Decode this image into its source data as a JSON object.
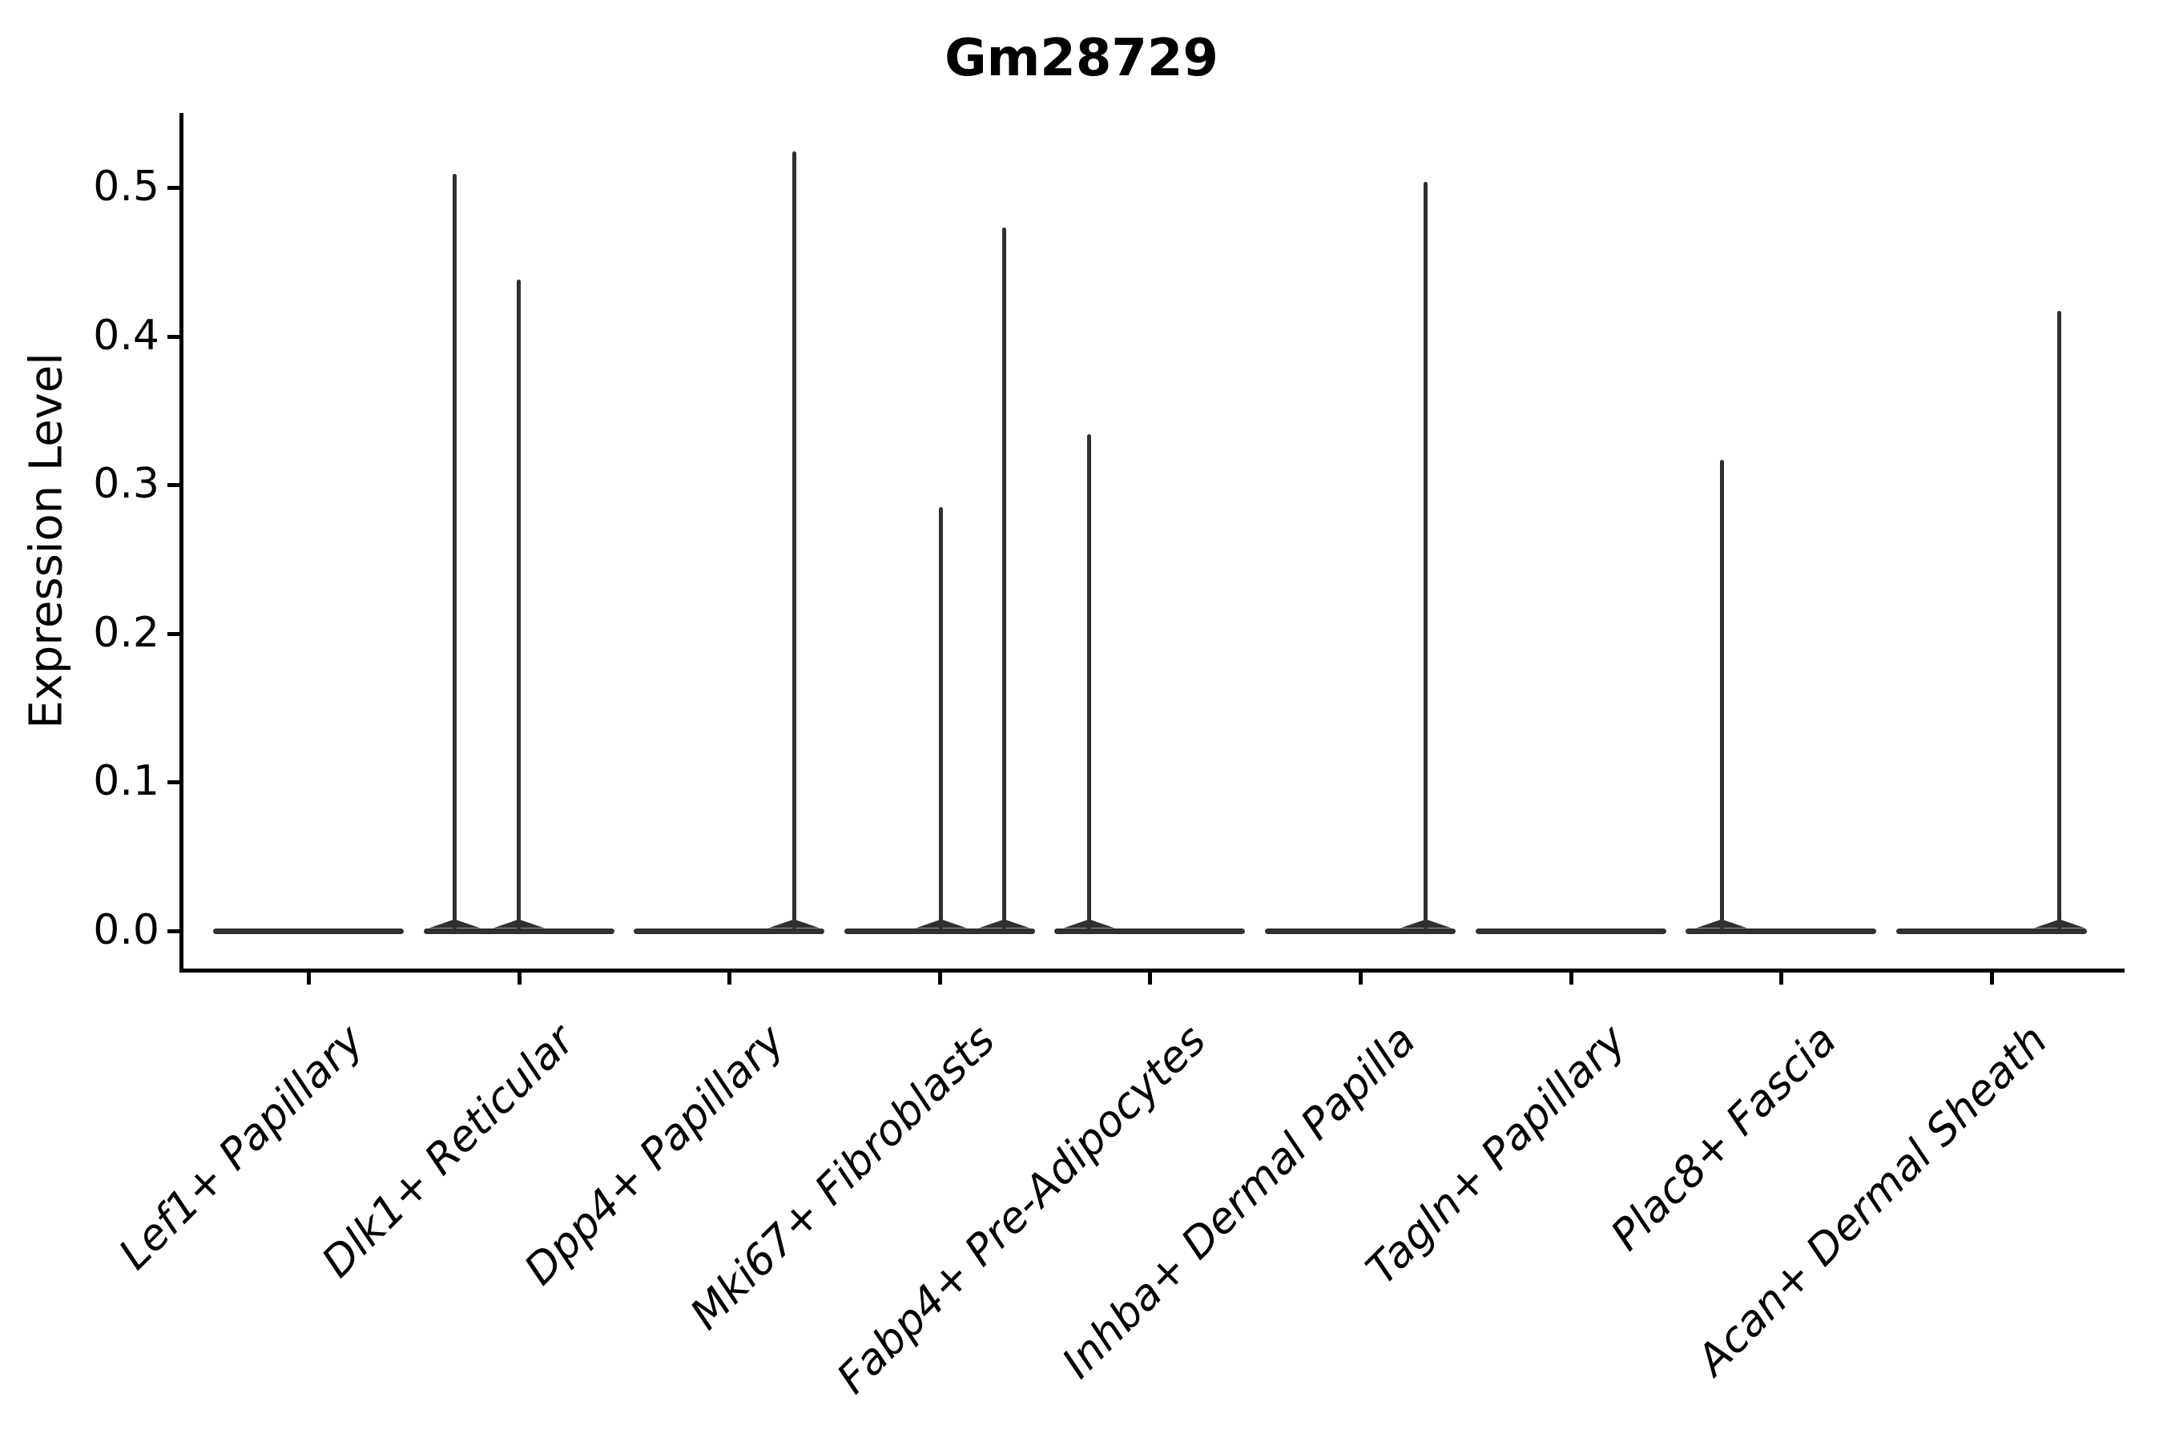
{
  "figure": {
    "title": "Gm28729",
    "y_axis": {
      "label": "Expression Level",
      "ticks": [
        "0.0",
        "0.1",
        "0.2",
        "0.3",
        "0.4",
        "0.5"
      ]
    },
    "x_axis": {
      "categories": [
        "Lef1+ Papillary",
        "Dlk1+ Reticular",
        "Dpp4+ Papillary",
        "Mki67+ Fibroblasts",
        "Fabp4+ Pre-Adipocytes",
        "Inhba+ Dermal Papilla",
        "Tagln+ Papillary",
        "Plac8+ Fascia",
        "Acan+ Dermal Sheath"
      ]
    }
  },
  "chart_data": {
    "type": "violin",
    "title": "Gm28729",
    "xlabel": "",
    "ylabel": "Expression Level",
    "ylim": [
      -0.025,
      0.55
    ],
    "yticks": [
      0.0,
      0.1,
      0.2,
      0.3,
      0.4,
      0.5
    ],
    "grid": false,
    "legend": false,
    "categories": [
      "Lef1+ Papillary",
      "Dlk1+ Reticular",
      "Dpp4+ Papillary",
      "Mki67+ Fibroblasts",
      "Fabp4+ Pre-Adipocytes",
      "Inhba+ Dermal Papilla",
      "Tagln+ Papillary",
      "Plac8+ Fascia",
      "Acan+ Dermal Sheath"
    ],
    "series": [
      {
        "category": "Lef1+ Papillary",
        "base_at_zero": true,
        "max_expression": 0.0,
        "spikes": []
      },
      {
        "category": "Dlk1+ Reticular",
        "base_at_zero": true,
        "max_expression": 0.509,
        "spikes": [
          {
            "value": 0.509,
            "x_offset_frac": -0.305
          },
          {
            "value": 0.438,
            "x_offset_frac": 0.0
          }
        ]
      },
      {
        "category": "Dpp4+ Papillary",
        "base_at_zero": true,
        "max_expression": 0.524,
        "spikes": [
          {
            "value": 0.524,
            "x_offset_frac": 0.308
          }
        ]
      },
      {
        "category": "Mki67+ Fibroblasts",
        "base_at_zero": true,
        "max_expression": 0.473,
        "spikes": [
          {
            "value": 0.285,
            "x_offset_frac": 0.008
          },
          {
            "value": 0.473,
            "x_offset_frac": 0.308
          }
        ]
      },
      {
        "category": "Fabp4+ Pre-Adipocytes",
        "base_at_zero": true,
        "max_expression": 0.334,
        "spikes": [
          {
            "value": 0.334,
            "x_offset_frac": -0.289
          }
        ]
      },
      {
        "category": "Inhba+ Dermal Papilla",
        "base_at_zero": true,
        "max_expression": 0.504,
        "spikes": [
          {
            "value": 0.504,
            "x_offset_frac": 0.312
          }
        ]
      },
      {
        "category": "Tagln+ Papillary",
        "base_at_zero": true,
        "max_expression": 0.0,
        "spikes": []
      },
      {
        "category": "Plac8+ Fascia",
        "base_at_zero": true,
        "max_expression": 0.317,
        "spikes": [
          {
            "value": 0.317,
            "x_offset_frac": -0.282
          }
        ]
      },
      {
        "category": "Acan+ Dermal Sheath",
        "base_at_zero": true,
        "max_expression": 0.417,
        "spikes": [
          {
            "value": 0.417,
            "x_offset_frac": 0.324
          }
        ]
      }
    ],
    "style": {
      "violin_color": "#303030",
      "axis_color": "#000000",
      "background": "#ffffff",
      "violin_width_frac": 0.906
    }
  }
}
